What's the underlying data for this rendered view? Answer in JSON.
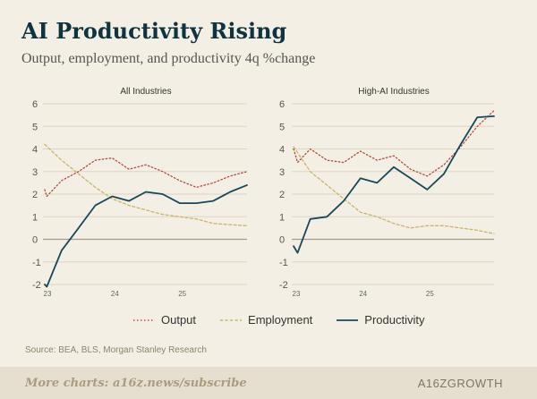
{
  "header": {
    "title": "AI Productivity Rising",
    "subtitle": "Output, employment, and productivity 4q %change"
  },
  "legend": {
    "items": [
      {
        "label": "Output",
        "color": "#b44a3c",
        "style": "dotted"
      },
      {
        "label": "Employment",
        "color": "#c9b46a",
        "style": "dashed"
      },
      {
        "label": "Productivity",
        "color": "#17495a",
        "style": "solid"
      }
    ]
  },
  "source": "Source: BEA, BLS, Morgan Stanley Research",
  "footer": {
    "link_text": "More charts: a16z.news/subscribe",
    "brand": "A16ZGROWTH"
  },
  "colors": {
    "output": "#b44a3c",
    "employment": "#c9b46a",
    "productivity": "#17495a",
    "grid": "#ddd5c3",
    "zero_line": "#a59e88"
  },
  "chart_data": [
    {
      "type": "line",
      "title": "All Industries",
      "xlim": [
        23.0,
        26.0
      ],
      "ylim": [
        -2,
        6
      ],
      "xticks": [
        "23",
        "24",
        "25"
      ],
      "yticks": [
        "-2",
        "-1",
        "0",
        "1",
        "2",
        "3",
        "4",
        "5",
        "6"
      ],
      "grid": true,
      "legend_position": "bottom",
      "series": [
        {
          "name": "Output",
          "style": "dotted",
          "x": [
            23.0,
            23.03,
            23.25,
            23.5,
            23.75,
            24.0,
            24.25,
            24.5,
            24.75,
            25.0,
            25.25,
            25.5,
            25.75,
            26.0
          ],
          "y": [
            2.2,
            1.9,
            2.6,
            3.0,
            3.5,
            3.6,
            3.1,
            3.3,
            3.0,
            2.6,
            2.3,
            2.5,
            2.8,
            3.0
          ]
        },
        {
          "name": "Employment",
          "style": "dashed",
          "x": [
            23.0,
            23.25,
            23.5,
            23.75,
            24.0,
            24.25,
            24.5,
            24.75,
            25.0,
            25.25,
            25.5,
            25.75,
            26.0
          ],
          "y": [
            4.2,
            3.5,
            2.9,
            2.3,
            1.8,
            1.5,
            1.3,
            1.1,
            1.0,
            0.9,
            0.7,
            0.65,
            0.6
          ]
        },
        {
          "name": "Productivity",
          "style": "solid",
          "x": [
            23.0,
            23.03,
            23.25,
            23.5,
            23.75,
            24.0,
            24.25,
            24.5,
            24.75,
            25.0,
            25.25,
            25.5,
            25.75,
            26.0
          ],
          "y": [
            -2.0,
            -2.1,
            -0.5,
            0.5,
            1.5,
            1.9,
            1.7,
            2.1,
            2.0,
            1.6,
            1.6,
            1.7,
            2.1,
            2.4
          ]
        }
      ]
    },
    {
      "type": "line",
      "title": "High-AI Industries",
      "xlim": [
        23.0,
        26.0
      ],
      "ylim": [
        -2,
        6
      ],
      "xticks": [
        "23",
        "24",
        "25"
      ],
      "yticks": [
        "-2",
        "-1",
        "0",
        "1",
        "2",
        "3",
        "4",
        "5",
        "6"
      ],
      "grid": true,
      "legend_position": "bottom",
      "series": [
        {
          "name": "Output",
          "style": "dotted",
          "x": [
            23.0,
            23.06,
            23.25,
            23.5,
            23.75,
            24.0,
            24.25,
            24.5,
            24.75,
            25.0,
            25.25,
            25.5,
            25.75,
            26.0
          ],
          "y": [
            4.0,
            3.4,
            4.0,
            3.5,
            3.4,
            3.9,
            3.5,
            3.7,
            3.1,
            2.8,
            3.3,
            4.1,
            5.0,
            5.7
          ]
        },
        {
          "name": "Employment",
          "style": "dashed",
          "x": [
            23.0,
            23.25,
            23.5,
            23.75,
            24.0,
            24.25,
            24.5,
            24.75,
            25.0,
            25.25,
            25.5,
            25.75,
            26.0
          ],
          "y": [
            4.1,
            3.0,
            2.4,
            1.8,
            1.2,
            1.0,
            0.7,
            0.5,
            0.6,
            0.6,
            0.5,
            0.4,
            0.25
          ]
        },
        {
          "name": "Productivity",
          "style": "solid",
          "x": [
            23.0,
            23.06,
            23.25,
            23.5,
            23.75,
            24.0,
            24.25,
            24.5,
            24.75,
            25.0,
            25.25,
            25.5,
            25.75,
            26.0
          ],
          "y": [
            -0.3,
            -0.6,
            0.9,
            1.0,
            1.7,
            2.7,
            2.5,
            3.2,
            2.7,
            2.2,
            2.9,
            4.2,
            5.4,
            5.45
          ]
        }
      ]
    }
  ]
}
